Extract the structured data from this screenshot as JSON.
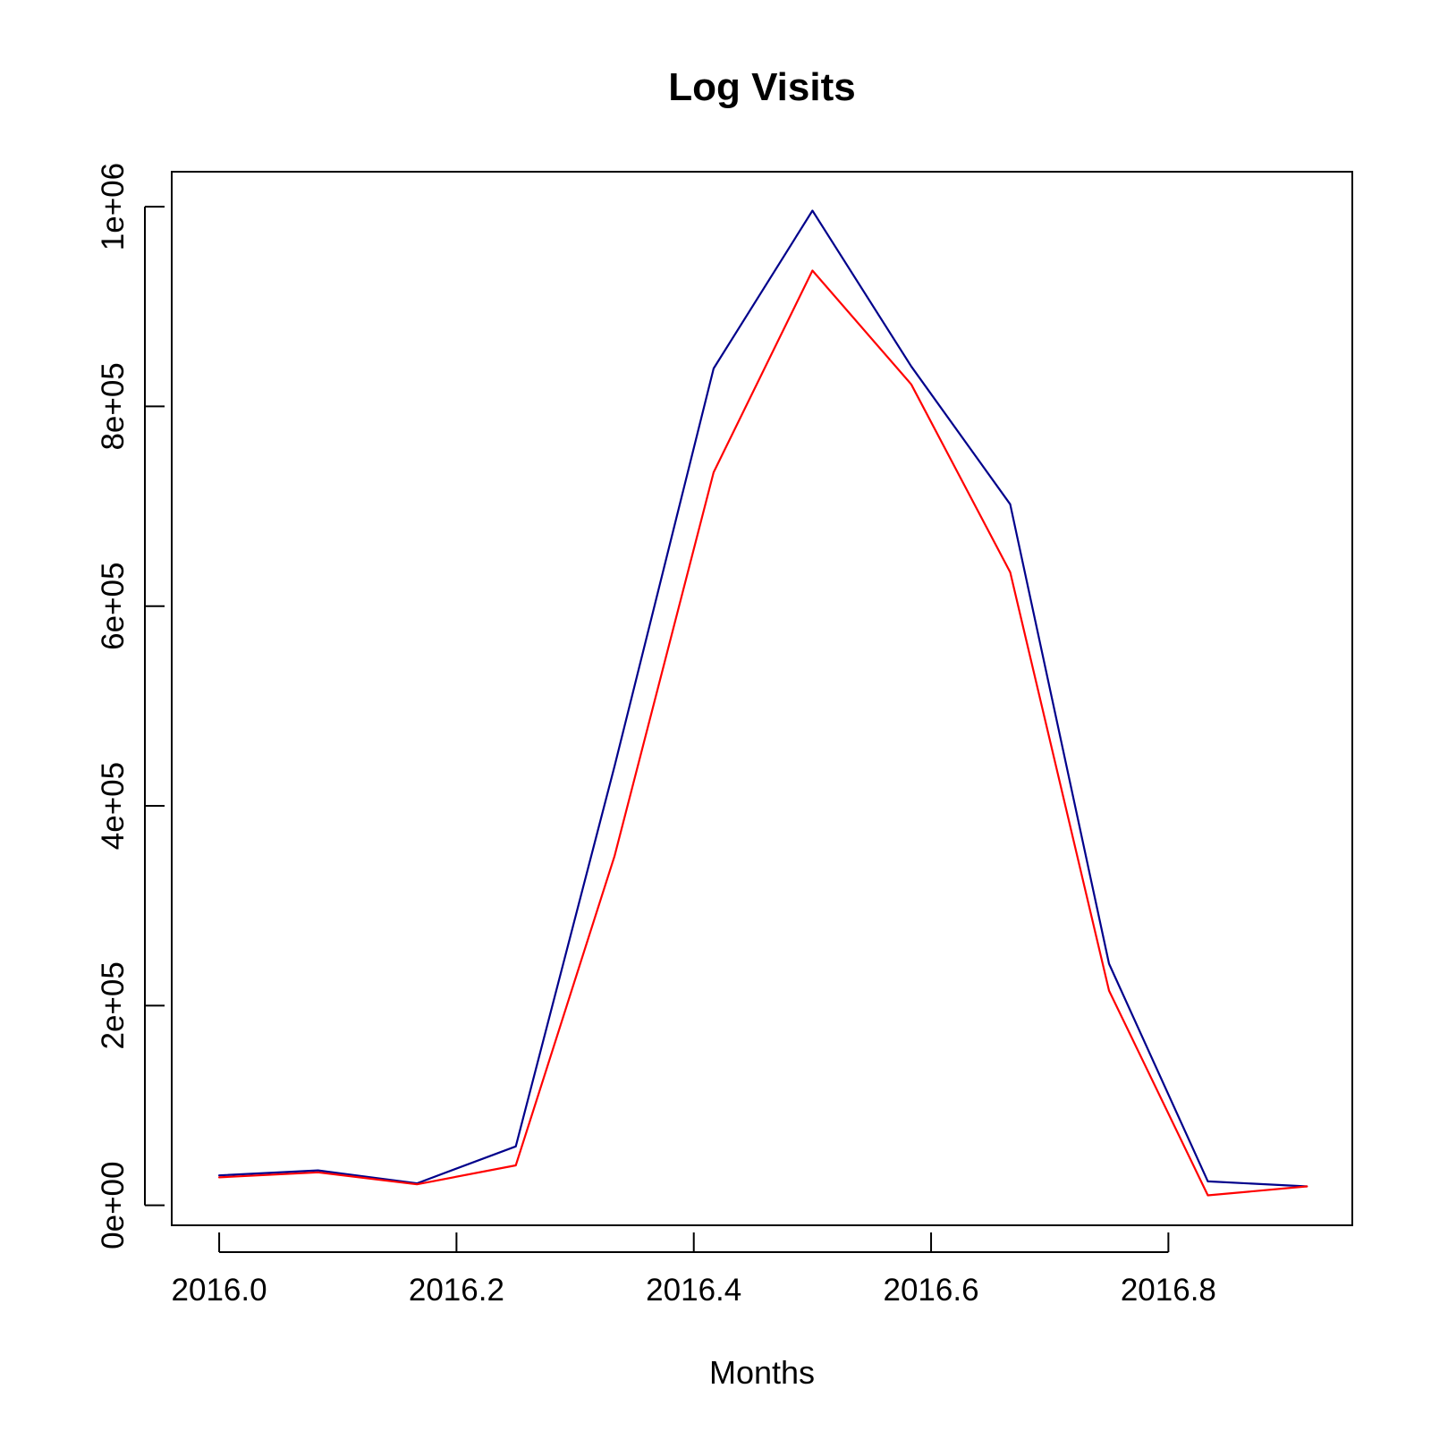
{
  "chart_data": {
    "type": "line",
    "title": "Log Visits",
    "xlabel": "Months",
    "ylabel": "",
    "xlim": [
      2015.96,
      2016.955
    ],
    "ylim": [
      -20000,
      1035000
    ],
    "x_ticks": [
      2016.0,
      2016.2,
      2016.4,
      2016.6,
      2016.8
    ],
    "x_tick_labels": [
      "2016.0",
      "2016.2",
      "2016.4",
      "2016.6",
      "2016.8"
    ],
    "y_ticks": [
      0,
      200000,
      400000,
      600000,
      800000,
      1000000
    ],
    "y_tick_labels": [
      "0e+00",
      "2e+05",
      "4e+05",
      "6e+05",
      "8e+05",
      "1e+06"
    ],
    "grid": false,
    "legend": false,
    "x": [
      2016.0,
      2016.0833,
      2016.1667,
      2016.25,
      2016.3333,
      2016.4167,
      2016.5,
      2016.5833,
      2016.6667,
      2016.75,
      2016.8333,
      2016.9167
    ],
    "series": [
      {
        "color": "#00008B",
        "values": [
          30000,
          35000,
          22000,
          59000,
          440000,
          838000,
          996000,
          840000,
          702000,
          242000,
          24000,
          19000
        ]
      },
      {
        "color": "#FF0000",
        "values": [
          28000,
          33000,
          21000,
          40000,
          350000,
          734000,
          936000,
          822000,
          634000,
          215000,
          10000,
          19000
        ]
      }
    ]
  }
}
